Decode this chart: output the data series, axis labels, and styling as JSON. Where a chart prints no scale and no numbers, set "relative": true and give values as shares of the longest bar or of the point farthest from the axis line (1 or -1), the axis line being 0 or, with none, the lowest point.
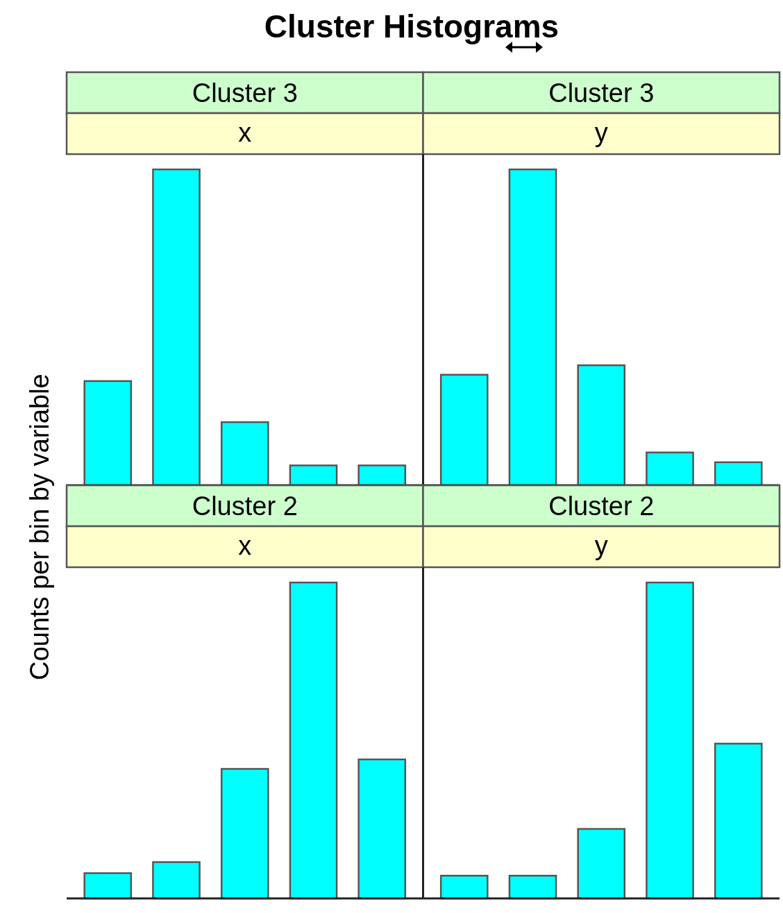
{
  "chart_data": [
    {
      "type": "bar",
      "title": "Cluster 3",
      "subtitle": "x",
      "annotations": [
        "Cluster Histograms"
      ],
      "ylabel": "Counts per bin by variable",
      "categories": [
        null,
        null,
        null,
        null,
        null
      ],
      "relative": true,
      "color": "#00ffff",
      "tick_labels": false,
      "values": [
        0.33,
        1,
        0.2,
        0.063,
        0.063
      ]
    },
    {
      "type": "bar",
      "title": "Cluster 3",
      "subtitle": "y",
      "categories": [
        null,
        null,
        null,
        null,
        null
      ],
      "relative": true,
      "color": "#00ffff",
      "tick_labels": false,
      "values": [
        0.35,
        1,
        0.38,
        0.104,
        0.073
      ]
    },
    {
      "type": "bar",
      "title": "Cluster 2",
      "subtitle": "x",
      "categories": [
        null,
        null,
        null,
        null,
        null
      ],
      "relative": true,
      "color": "#00ffff",
      "tick_labels": false,
      "values": [
        0.08,
        0.115,
        0.41,
        1,
        0.44
      ]
    },
    {
      "type": "bar",
      "title": "Cluster 2",
      "subtitle": "y",
      "categories": [
        null,
        null,
        null,
        null,
        null
      ],
      "relative": true,
      "color": "#00ffff",
      "tick_labels": false,
      "values": [
        0.072,
        0.072,
        0.22,
        1,
        0.49
      ]
    }
  ]
}
